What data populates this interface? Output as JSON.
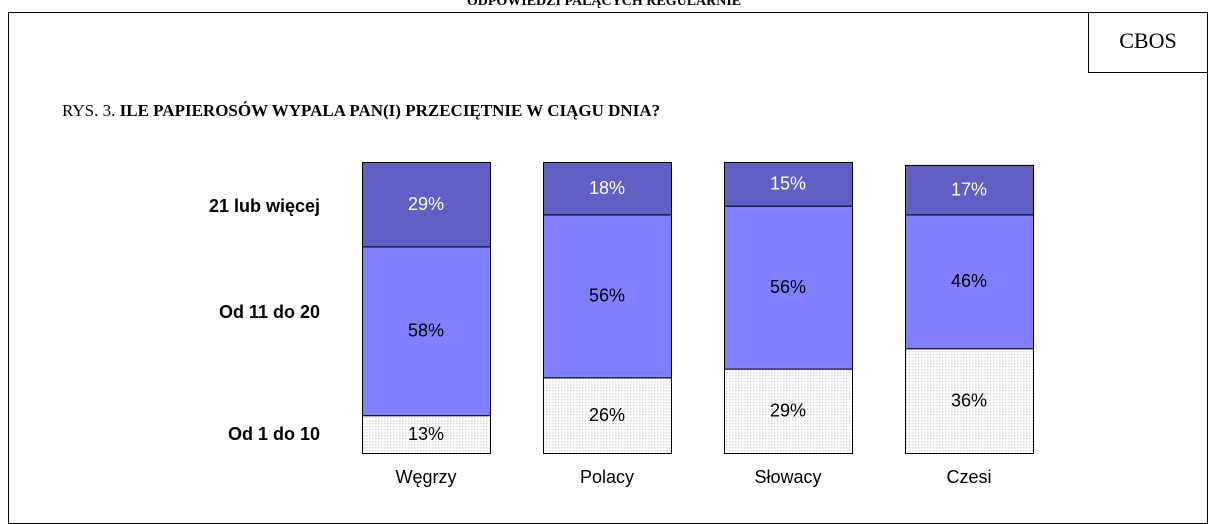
{
  "chart_data": {
    "type": "bar",
    "stacked": true,
    "header_note": "ODPOWIEDZI PALĄCYCH REGULARNIE",
    "source": "CBOS",
    "title_prefix": "RYS. 3.",
    "title": "ILE PAPIEROSÓW WYPALA PAN(I) PRZECIĘTNIE W CIĄGU DNIA?",
    "categories": [
      "Węgrzy",
      "Polacy",
      "Słowacy",
      "Czesi"
    ],
    "ylim": [
      0,
      100
    ],
    "series": [
      {
        "name": "Od 1 do 10",
        "color": "#d8d8d8",
        "values": [
          13,
          26,
          29,
          36
        ],
        "value_labels": [
          "13%",
          "26%",
          "29%",
          "36%"
        ]
      },
      {
        "name": "Od 11 do 20",
        "color": "#8080ff",
        "values": [
          58,
          56,
          56,
          46
        ],
        "value_labels": [
          "58%",
          "56%",
          "56%",
          "46%"
        ]
      },
      {
        "name": "21 lub więcej",
        "color": "#6060c4",
        "values": [
          29,
          18,
          15,
          17
        ],
        "value_labels": [
          "29%",
          "18%",
          "15%",
          "17%"
        ]
      }
    ]
  }
}
